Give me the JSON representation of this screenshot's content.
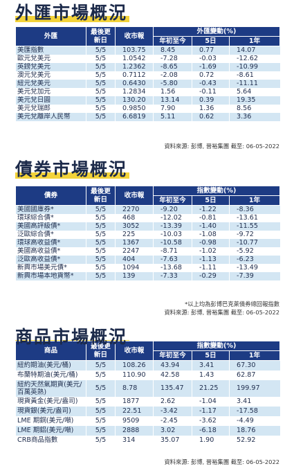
{
  "fx": {
    "title": "外匯市場概況",
    "headers": {
      "name": "外匯",
      "date": "最後更新日",
      "price": "收市報",
      "group": "外匯變動(%)",
      "ytd": "年初至今",
      "d5": "5日",
      "y1": "1年"
    },
    "rows": [
      {
        "name": "美匯指數",
        "date": "5/5",
        "price": "103.75",
        "ytd": "8.45",
        "d5": "0.77",
        "y1": "14.07"
      },
      {
        "name": "歐元兌美元",
        "date": "5/5",
        "price": "1.0542",
        "ytd": "-7.28",
        "d5": "-0.03",
        "y1": "-12.62"
      },
      {
        "name": "英鎊兌美元",
        "date": "5/5",
        "price": "1.2362",
        "ytd": "-8.65",
        "d5": "-1.69",
        "y1": "-10.99"
      },
      {
        "name": "澳元兌美元",
        "date": "5/5",
        "price": "0.7112",
        "ytd": "-2.08",
        "d5": "0.72",
        "y1": "-8.61"
      },
      {
        "name": "紐元兌美元",
        "date": "5/5",
        "price": "0.6430",
        "ytd": "-5.80",
        "d5": "-0.43",
        "y1": "-11.11"
      },
      {
        "name": "美元兌加元",
        "date": "5/5",
        "price": "1.2834",
        "ytd": "1.56",
        "d5": "-0.11",
        "y1": "5.64"
      },
      {
        "name": "美元兌日圓",
        "date": "5/5",
        "price": "130.20",
        "ytd": "13.14",
        "d5": "0.39",
        "y1": "19.35"
      },
      {
        "name": "美元兌瑞郎",
        "date": "5/5",
        "price": "0.9850",
        "ytd": "7.90",
        "d5": "1.36",
        "y1": "8.56"
      },
      {
        "name": "美元兌離岸人民幣",
        "date": "5/5",
        "price": "6.6819",
        "ytd": "5.11",
        "d5": "0.62",
        "y1": "3.36"
      }
    ],
    "source": "資料來源: 彭博, 晉裕集團 截至: 06-05-2022"
  },
  "bond": {
    "title": "債券市場概況",
    "headers": {
      "name": "債券",
      "date": "最後更新日",
      "price": "收市報",
      "group": "指數變動(%)",
      "ytd": "年初至今",
      "d5": "5日",
      "y1": "1年"
    },
    "rows": [
      {
        "name": "美國國庫券*",
        "date": "5/5",
        "price": "2270",
        "ytd": "-9.20",
        "d5": "-1.22",
        "y1": "-8.36"
      },
      {
        "name": "環球綜合債*",
        "date": "5/5",
        "price": "468",
        "ytd": "-12.02",
        "d5": "-0.81",
        "y1": "-13.61"
      },
      {
        "name": "美國高評級債*",
        "date": "5/5",
        "price": "3052",
        "ytd": "-13.39",
        "d5": "-1.40",
        "y1": "-11.55"
      },
      {
        "name": "泛歐綜合債*",
        "date": "5/5",
        "price": "225",
        "ytd": "-10.03",
        "d5": "-1.08",
        "y1": "-9.72"
      },
      {
        "name": "環球高收益債*",
        "date": "5/5",
        "price": "1367",
        "ytd": "-10.58",
        "d5": "-0.98",
        "y1": "-10.77"
      },
      {
        "name": "美國高收益債*",
        "date": "5/5",
        "price": "2247",
        "ytd": "-8.71",
        "d5": "-1.02",
        "y1": "-5.92"
      },
      {
        "name": "泛歐高收益債*",
        "date": "5/5",
        "price": "404",
        "ytd": "-7.63",
        "d5": "-1.13",
        "y1": "-6.23"
      },
      {
        "name": "新興市場美元債*",
        "date": "5/5",
        "price": "1094",
        "ytd": "-13.68",
        "d5": "-1.11",
        "y1": "-13.49"
      },
      {
        "name": "新興市場本地貨幣*",
        "date": "5/5",
        "price": "139",
        "ytd": "-7.33",
        "d5": "-0.29",
        "y1": "-7.39"
      }
    ],
    "footnote": "*以上均為彭博巴克萊債券總回報指數",
    "source": "資料來源: 彭博, 晉裕集團 截至: 06-05-2022"
  },
  "commodity": {
    "title": "商品市場概況",
    "headers": {
      "name": "商品",
      "date": "最後更新日",
      "price": "收市報",
      "group": "指數變動(%)",
      "ytd": "年初至今",
      "d5": "5日",
      "y1": "1年"
    },
    "rows": [
      {
        "name": "紐約期油(美元/桶)",
        "date": "5/5",
        "price": "108.26",
        "ytd": "43.94",
        "d5": "3.41",
        "y1": "67.30"
      },
      {
        "name": "布蘭特期油(美元/桶)",
        "date": "5/5",
        "price": "110.90",
        "ytd": "42.58",
        "d5": "1.43",
        "y1": "62.87"
      },
      {
        "name": "紐約天然氣期貨(美元/百萬英熱)",
        "date": "5/5",
        "price": "8.78",
        "ytd": "135.47",
        "d5": "21.25",
        "y1": "199.97"
      },
      {
        "name": "現貨黃金(美元/盎司)",
        "date": "5/5",
        "price": "1877",
        "ytd": "2.62",
        "d5": "-1.04",
        "y1": "3.41"
      },
      {
        "name": "現貨銀(美元/盎司)",
        "date": "5/5",
        "price": "22.51",
        "ytd": "-3.42",
        "d5": "-1.17",
        "y1": "-17.58"
      },
      {
        "name": "LME 期銅(美元/噸)",
        "date": "5/5",
        "price": "9509",
        "ytd": "-2.45",
        "d5": "-3.62",
        "y1": "-4.49"
      },
      {
        "name": "LME 期鋁(美元/噸)",
        "date": "5/5",
        "price": "2888",
        "ytd": "3.02",
        "d5": "-6.18",
        "y1": "18.76"
      },
      {
        "name": "CRB商品指數",
        "date": "5/5",
        "price": "314",
        "ytd": "35.07",
        "d5": "1.90",
        "y1": "52.92"
      }
    ],
    "source": "資料來源: 彭博, 晉裕集團 截至: 06-05-2022"
  }
}
